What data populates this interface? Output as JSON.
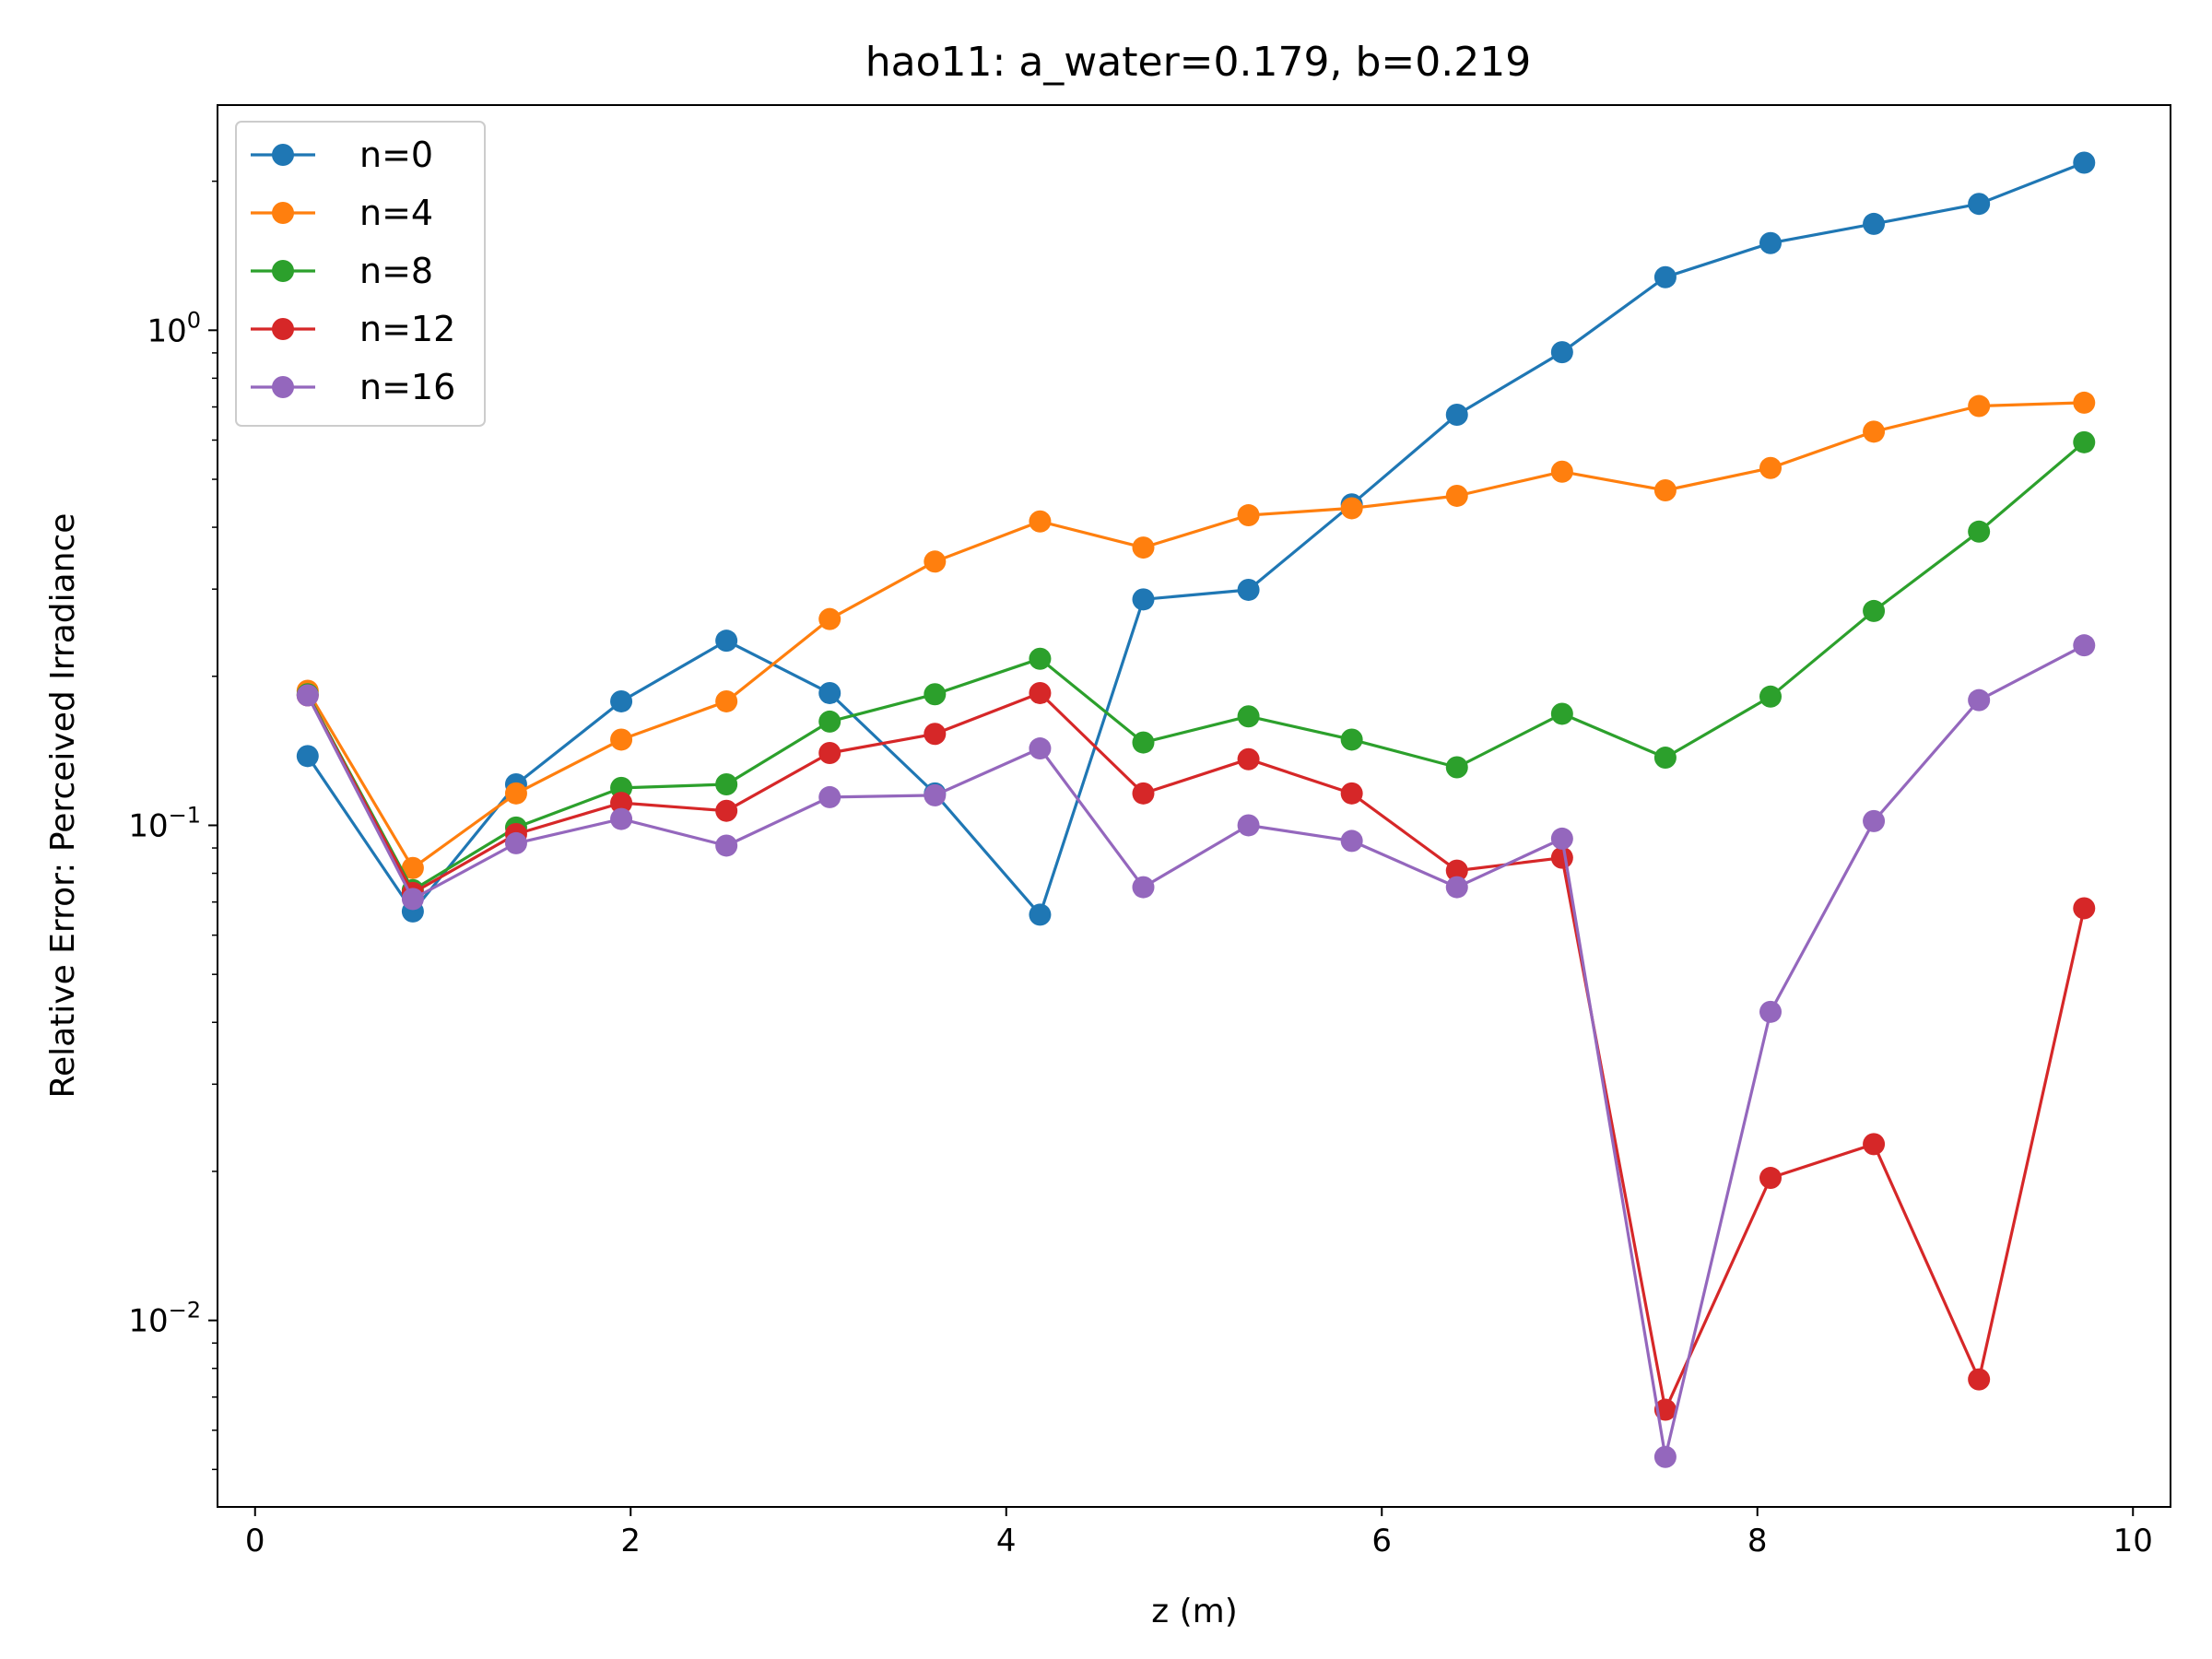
{
  "chart_data": {
    "type": "line",
    "title": "hao11: a_water=0.179, b=0.219",
    "xlabel": "z (m)",
    "ylabel": "Relative Error: Perceived Irradiance",
    "yscale": "log",
    "xlim": [
      -0.2,
      10.2
    ],
    "ylim": [
      0.0042,
      2.85
    ],
    "grid": false,
    "legend_position": "top-left",
    "x_ticks": [
      0,
      2,
      4,
      6,
      8,
      10
    ],
    "x_tick_labels": [
      "0",
      "2",
      "4",
      "6",
      "8",
      "10"
    ],
    "y_major_ticks": [
      {
        "value": 0.01,
        "base": "10",
        "exp": "−2"
      },
      {
        "value": 0.1,
        "base": "10",
        "exp": "−1"
      },
      {
        "value": 1,
        "base": "10",
        "exp": "0"
      }
    ],
    "x": [
      0.28,
      0.84,
      1.39,
      1.95,
      2.51,
      3.06,
      3.62,
      4.18,
      4.73,
      5.29,
      5.84,
      6.4,
      6.96,
      7.51,
      8.07,
      8.62,
      9.18,
      9.74
    ],
    "series": [
      {
        "name": "n=0",
        "color": "#1f77b4",
        "values": [
          0.138,
          0.067,
          0.121,
          0.178,
          0.236,
          0.185,
          0.116,
          0.066,
          0.286,
          0.299,
          0.445,
          0.675,
          0.903,
          1.28,
          1.5,
          1.64,
          1.8,
          2.18
        ]
      },
      {
        "name": "n=4",
        "color": "#ff7f0e",
        "values": [
          0.187,
          0.082,
          0.116,
          0.149,
          0.178,
          0.261,
          0.341,
          0.411,
          0.364,
          0.423,
          0.437,
          0.463,
          0.518,
          0.475,
          0.527,
          0.624,
          0.703,
          0.714
        ]
      },
      {
        "name": "n=8",
        "color": "#2ca02c",
        "values": [
          0.184,
          0.074,
          0.099,
          0.119,
          0.121,
          0.162,
          0.184,
          0.217,
          0.147,
          0.166,
          0.149,
          0.131,
          0.168,
          0.137,
          0.182,
          0.271,
          0.392,
          0.594
        ]
      },
      {
        "name": "n=12",
        "color": "#d62728",
        "values": [
          0.183,
          0.073,
          0.096,
          0.111,
          0.107,
          0.14,
          0.153,
          0.185,
          0.116,
          0.136,
          0.116,
          0.081,
          0.086,
          0.0066,
          0.0194,
          0.0227,
          0.0076,
          0.068
        ]
      },
      {
        "name": "n=16",
        "color": "#9467bd",
        "values": [
          0.183,
          0.071,
          0.092,
          0.103,
          0.091,
          0.114,
          0.115,
          0.143,
          0.075,
          0.1,
          0.093,
          0.075,
          0.094,
          0.0053,
          0.042,
          0.102,
          0.179,
          0.231
        ]
      }
    ]
  }
}
